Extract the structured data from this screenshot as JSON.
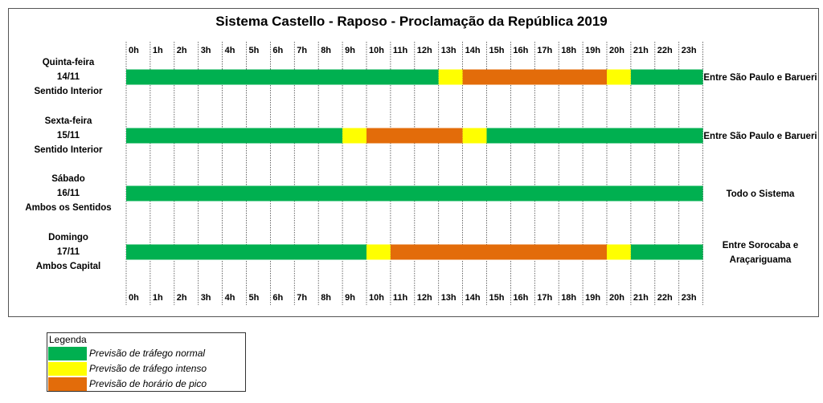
{
  "chart_data": {
    "type": "timeline",
    "title": "Sistema Castello - Raposo - Proclamação da República 2019",
    "hours": [
      "0h",
      "1h",
      "2h",
      "3h",
      "4h",
      "5h",
      "6h",
      "7h",
      "8h",
      "9h",
      "10h",
      "11h",
      "12h",
      "13h",
      "14h",
      "15h",
      "16h",
      "17h",
      "18h",
      "19h",
      "20h",
      "21h",
      "22h",
      "23h"
    ],
    "rows": [
      {
        "day": "Quinta-feira",
        "date": "14/11",
        "direction": "Sentido Interior",
        "zone": [
          "Entre São Paulo e Barueri"
        ],
        "segments": [
          {
            "start": 0,
            "end": 13,
            "level": "normal"
          },
          {
            "start": 13,
            "end": 14,
            "level": "intenso"
          },
          {
            "start": 14,
            "end": 20,
            "level": "pico"
          },
          {
            "start": 20,
            "end": 21,
            "level": "intenso"
          },
          {
            "start": 21,
            "end": 24,
            "level": "normal"
          }
        ]
      },
      {
        "day": "Sexta-feira",
        "date": "15/11",
        "direction": "Sentido Interior",
        "zone": [
          "Entre São Paulo e Barueri"
        ],
        "segments": [
          {
            "start": 0,
            "end": 9,
            "level": "normal"
          },
          {
            "start": 9,
            "end": 10,
            "level": "intenso"
          },
          {
            "start": 10,
            "end": 14,
            "level": "pico"
          },
          {
            "start": 14,
            "end": 15,
            "level": "intenso"
          },
          {
            "start": 15,
            "end": 24,
            "level": "normal"
          }
        ]
      },
      {
        "day": "Sábado",
        "date": "16/11",
        "direction": "Ambos os Sentidos",
        "zone": [
          "Todo o Sistema"
        ],
        "segments": [
          {
            "start": 0,
            "end": 24,
            "level": "normal"
          }
        ]
      },
      {
        "day": "Domingo",
        "date": "17/11",
        "direction": "Ambos Capital",
        "zone": [
          "Entre Sorocaba e",
          "Araçariguama"
        ],
        "segments": [
          {
            "start": 0,
            "end": 10,
            "level": "normal"
          },
          {
            "start": 10,
            "end": 11,
            "level": "intenso"
          },
          {
            "start": 11,
            "end": 20,
            "level": "pico"
          },
          {
            "start": 20,
            "end": 21,
            "level": "intenso"
          },
          {
            "start": 21,
            "end": 24,
            "level": "normal"
          }
        ]
      }
    ],
    "colors": {
      "normal": "#00b050",
      "intenso": "#ffff00",
      "pico": "#e36c0a"
    },
    "legend": {
      "title": "Legenda",
      "entries": [
        {
          "level": "normal",
          "label": "Previsão de tráfego normal"
        },
        {
          "level": "intenso",
          "label": "Previsão de tráfego intenso"
        },
        {
          "level": "pico",
          "label": "Previsão de horário de pico"
        }
      ]
    }
  }
}
